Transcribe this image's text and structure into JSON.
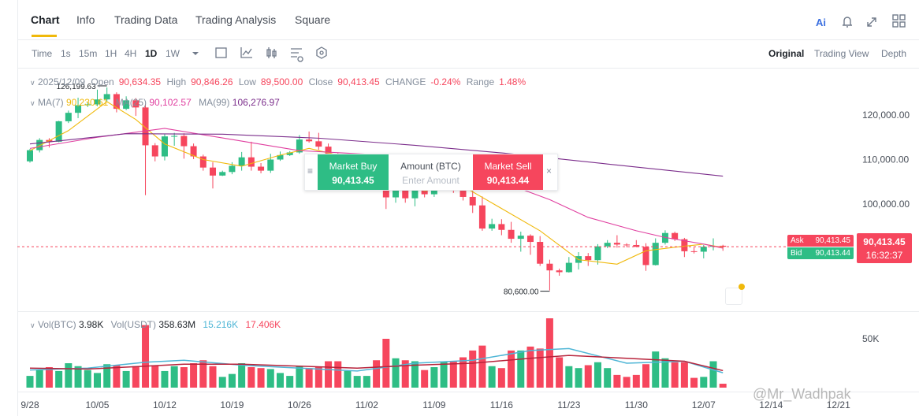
{
  "tabs": [
    "Chart",
    "Info",
    "Trading Data",
    "Trading Analysis",
    "Square"
  ],
  "intervals": [
    "Time",
    "1s",
    "15m",
    "1H",
    "4H",
    "1D",
    "1W"
  ],
  "views": [
    "Original",
    "Trading View",
    "Depth"
  ],
  "ohlc": {
    "date": "2025/12/09",
    "open_label": "Open",
    "open": "90,634.35",
    "high_label": "High",
    "high": "90,846.26",
    "low_label": "Low",
    "low": "89,500.00",
    "close_label": "Close",
    "close": "90,413.45",
    "change_label": "CHANGE",
    "change": "-0.24%",
    "range_label": "Range",
    "range": "1.48%"
  },
  "ma_info": {
    "ma7_label": "MA(7)",
    "ma7": "90,230.61",
    "ma25_label": "MA(25)",
    "ma25": "90,102.57",
    "ma99_label": "MA(99)",
    "ma99": "106,276.97"
  },
  "vol_info": {
    "vol_btc_label": "Vol(BTC)",
    "vol_btc": "3.98K",
    "vol_usdt_label": "Vol(USDT)",
    "vol_usdt": "358.63M",
    "vol_ma1": "15.216K",
    "vol_ma2": "17.406K"
  },
  "order_panel": {
    "buy_label": "Market Buy",
    "buy_price": "90,413.45",
    "amount_label": "Amount (BTC)",
    "amount_placeholder": "Enter Amount",
    "sell_label": "Market Sell",
    "sell_price": "90,413.44"
  },
  "price_tags": {
    "ask_label": "Ask",
    "ask": "90,413.45",
    "bid_label": "Bid",
    "bid": "90,413.44",
    "last": "90,413.45",
    "countdown": "16:32:37"
  },
  "watermark": "@Mr_Wadhpak",
  "chart_data": {
    "type": "candlestick",
    "x": [
      0,
      1,
      2,
      3,
      4,
      5,
      6,
      7,
      8,
      9,
      10,
      11,
      12,
      13,
      14,
      15,
      16,
      17,
      18,
      19,
      20,
      21,
      22,
      23,
      24,
      25,
      26,
      27,
      28,
      29,
      30,
      31,
      32,
      33,
      34,
      35,
      36,
      37,
      38,
      39,
      40,
      41,
      42,
      43,
      44,
      45,
      46,
      47,
      48,
      49,
      50,
      51,
      52,
      53,
      54,
      55,
      56,
      57,
      58,
      59,
      60,
      61,
      62,
      63,
      64,
      65,
      66,
      67,
      68,
      69,
      70,
      71,
      72
    ],
    "open": [
      109600,
      112100,
      114400,
      114000,
      118600,
      120500,
      122200,
      122400,
      123500,
      124700,
      121400,
      123300,
      121700,
      113200,
      110700,
      115200,
      115300,
      113000,
      110700,
      108200,
      106400,
      107200,
      108600,
      110500,
      108400,
      107500,
      110000,
      111000,
      111600,
      114500,
      114100,
      112900,
      110000,
      108300,
      109600,
      110100,
      110600,
      106500,
      101500,
      103900,
      101300,
      103300,
      102200,
      104700,
      106000,
      103000,
      101600,
      99700,
      94500,
      95500,
      94200,
      92200,
      92900,
      91500,
      86600,
      85100,
      84700,
      86800,
      88300,
      87400,
      90500,
      91300,
      90900,
      90800,
      90400,
      86300,
      91300,
      93500,
      92100,
      89400,
      89300,
      90400,
      90634.35
    ],
    "high": [
      112400,
      114800,
      114800,
      118700,
      121000,
      123900,
      122800,
      125700,
      126199.63,
      125100,
      124200,
      123800,
      122500,
      113700,
      115700,
      116000,
      115900,
      113600,
      111100,
      109400,
      107500,
      109400,
      111700,
      114000,
      109200,
      111300,
      111800,
      111900,
      115500,
      116300,
      116000,
      113600,
      111600,
      111100,
      110600,
      111300,
      110900,
      107000,
      104400,
      104100,
      104000,
      104100,
      105500,
      107000,
      106600,
      105300,
      104000,
      101700,
      96700,
      96600,
      96000,
      93800,
      93200,
      92800,
      87500,
      85500,
      88100,
      89200,
      89000,
      91000,
      91900,
      93000,
      91200,
      91900,
      91200,
      92300,
      94100,
      93800,
      92400,
      90300,
      90800,
      92300,
      90846.26
    ],
    "low": [
      109300,
      111600,
      112700,
      113900,
      118200,
      119300,
      121800,
      122000,
      123100,
      120600,
      121100,
      119800,
      102000,
      109600,
      109800,
      113100,
      110200,
      110100,
      107500,
      103500,
      106300,
      106700,
      107500,
      107500,
      106900,
      107000,
      109700,
      110800,
      111300,
      113800,
      112200,
      109000,
      106400,
      108100,
      109500,
      109800,
      105400,
      98900,
      100300,
      100300,
      99500,
      101500,
      101600,
      103500,
      102500,
      100800,
      98000,
      94000,
      94000,
      93000,
      91300,
      89300,
      88600,
      86100,
      80600,
      83900,
      84600,
      85300,
      86100,
      86400,
      90100,
      90200,
      90300,
      90300,
      85000,
      86200,
      90900,
      91700,
      88100,
      88900,
      87800,
      89600,
      89500
    ],
    "close": [
      112100,
      114400,
      114000,
      118600,
      120500,
      122200,
      122400,
      123500,
      124700,
      121400,
      123300,
      121700,
      113200,
      110700,
      115200,
      115300,
      113000,
      110700,
      108200,
      106400,
      107200,
      108600,
      110500,
      108400,
      107500,
      110000,
      111000,
      111600,
      114500,
      114100,
      112900,
      110000,
      108300,
      109600,
      110100,
      110600,
      106500,
      101500,
      103900,
      101300,
      103300,
      102200,
      104700,
      106000,
      103000,
      101600,
      99700,
      94500,
      95500,
      94200,
      92200,
      92900,
      91500,
      86600,
      85100,
      84700,
      86800,
      88300,
      87400,
      90500,
      91300,
      90900,
      90800,
      90400,
      86300,
      91300,
      93500,
      92100,
      89400,
      89300,
      90400,
      90600,
      90413.45
    ],
    "volume": [
      12,
      18,
      21,
      17,
      25,
      22,
      18,
      15,
      24,
      23,
      17,
      22,
      64,
      23,
      17,
      22,
      21,
      25,
      28,
      22,
      11,
      14,
      25,
      21,
      20,
      19,
      15,
      12,
      22,
      20,
      21,
      27,
      27,
      17,
      12,
      12,
      28,
      50,
      30,
      28,
      27,
      18,
      21,
      27,
      27,
      31,
      38,
      43,
      22,
      20,
      38,
      38,
      42,
      40,
      71,
      31,
      22,
      20,
      23,
      26,
      20,
      13,
      11,
      13,
      24,
      37,
      30,
      26,
      26,
      10,
      11,
      27,
      4
    ],
    "up_color": "#2ebd85",
    "down_color": "#f6465d",
    "ma": [
      {
        "name": "MA(7)",
        "color": "#f0b90b",
        "x": [
          0,
          4,
          8,
          11,
          14,
          18,
          22,
          26,
          29,
          33,
          37,
          41,
          45,
          49,
          53,
          57,
          61,
          64,
          67,
          70,
          72
        ],
        "values": [
          112000,
          116500,
          123000,
          119000,
          113500,
          110000,
          108500,
          111000,
          112500,
          110500,
          105500,
          103000,
          104000,
          99000,
          94000,
          87500,
          86500,
          89500,
          90300,
          91000,
          90230.61
        ]
      },
      {
        "name": "MA(25)",
        "color": "#e040a0",
        "x": [
          0,
          7,
          14,
          21,
          28,
          35,
          42,
          49,
          54,
          58,
          63,
          66,
          70,
          72
        ],
        "values": [
          112500,
          115000,
          117000,
          114500,
          112000,
          111200,
          109000,
          105000,
          101000,
          97000,
          94000,
          92500,
          91000,
          90102.57
        ]
      },
      {
        "name": "MA(99)",
        "color": "#7b2d8b",
        "x": [
          0,
          10,
          20,
          30,
          40,
          50,
          60,
          72
        ],
        "values": [
          113500,
          115800,
          115700,
          114800,
          113200,
          111300,
          109000,
          106276.97
        ]
      }
    ],
    "vol_ma": [
      {
        "color": "#4fb6d6",
        "x": [
          0,
          6,
          12,
          16,
          22,
          28,
          34,
          40,
          46,
          52,
          56,
          62,
          68,
          72
        ],
        "values": [
          18,
          20,
          26,
          28,
          23,
          20,
          17,
          25,
          28,
          38,
          40,
          25,
          27,
          15.216
        ]
      },
      {
        "color": "#b8233b",
        "x": [
          0,
          6,
          12,
          16,
          22,
          28,
          34,
          40,
          46,
          52,
          56,
          62,
          68,
          72
        ],
        "values": [
          20,
          19,
          22,
          24,
          24,
          22,
          20,
          23,
          25,
          30,
          33,
          30,
          27,
          17.406
        ]
      }
    ],
    "annotations": [
      {
        "x": 8,
        "value": 126199.63,
        "label": "126,199.63"
      },
      {
        "x": 54,
        "value": 80600,
        "label": "80,600.00"
      }
    ],
    "xlim": [
      -1.31,
      85.74
    ],
    "xticks": [
      {
        "value": 0,
        "label": "9/28"
      },
      {
        "value": 7,
        "label": "10/05"
      },
      {
        "value": 14,
        "label": "10/12"
      },
      {
        "value": 21,
        "label": "10/19"
      },
      {
        "value": 28,
        "label": "10/26"
      },
      {
        "value": 35,
        "label": "11/02"
      },
      {
        "value": 42,
        "label": "11/09"
      },
      {
        "value": 49,
        "label": "11/16"
      },
      {
        "value": 56,
        "label": "11/23"
      },
      {
        "value": 63,
        "label": "11/30"
      },
      {
        "value": 70,
        "label": "12/07"
      },
      {
        "value": 77,
        "label": "12/14"
      },
      {
        "value": 84,
        "label": "12/21"
      }
    ],
    "ylim": [
      75929,
      130442
    ],
    "yticks": [
      {
        "value": 100000,
        "label": "100,000.00"
      },
      {
        "value": 110000,
        "label": "110,000.00"
      },
      {
        "value": 120000,
        "label": "120,000.00"
      }
    ],
    "vlim": [
      0,
      76.6
    ],
    "vticks": [
      {
        "value": 50,
        "label": "50K"
      }
    ]
  }
}
